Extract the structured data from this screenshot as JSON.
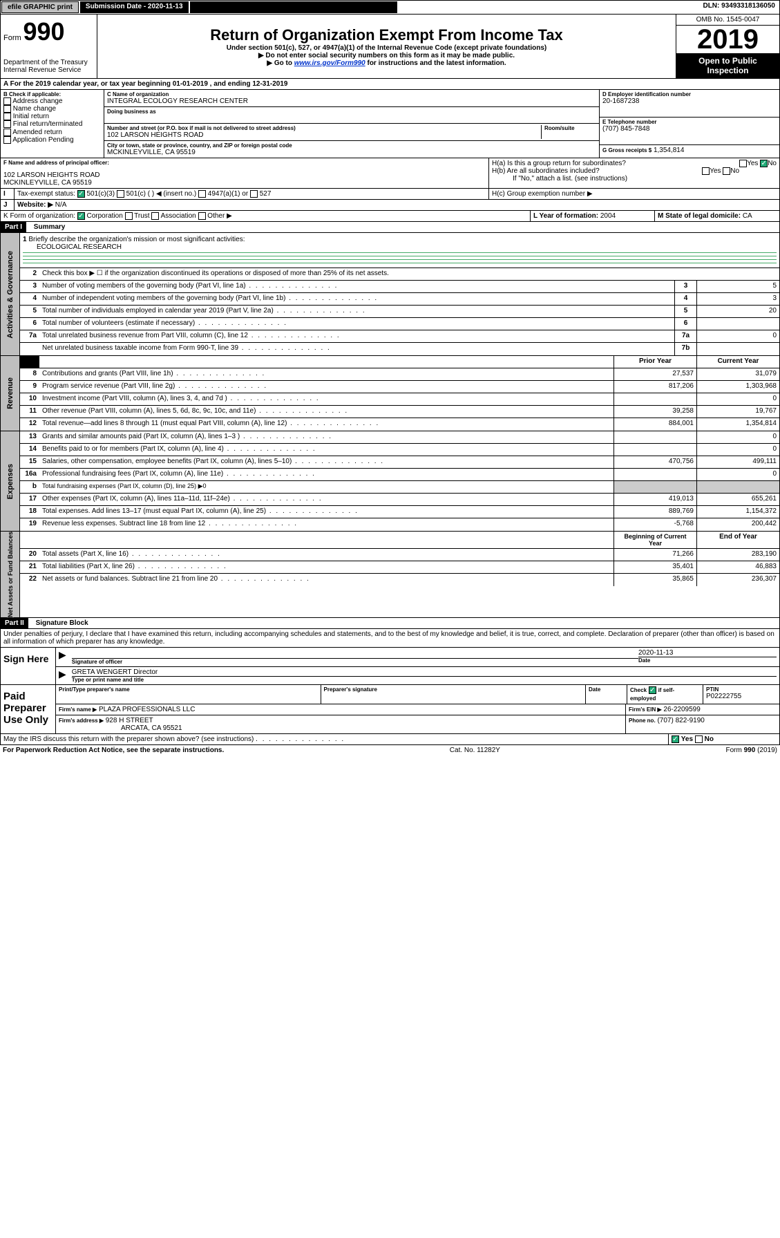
{
  "topbar": {
    "efile": "efile GRAPHIC print",
    "subm_label": "Submission Date - 2020-11-13",
    "dln": "DLN: 93493318136050"
  },
  "header": {
    "form_label": "Form",
    "form_num": "990",
    "dept1": "Department of the Treasury",
    "dept2": "Internal Revenue Service",
    "title": "Return of Organization Exempt From Income Tax",
    "subtitle": "Under section 501(c), 527, or 4947(a)(1) of the Internal Revenue Code (except private foundations)",
    "warn": "▶ Do not enter social security numbers on this form as it may be made public.",
    "link_pre": "▶ Go to ",
    "link": "www.irs.gov/Form990",
    "link_post": " for instructions and the latest information.",
    "omb": "OMB No. 1545-0047",
    "year": "2019",
    "inspect1": "Open to Public",
    "inspect2": "Inspection"
  },
  "line_a": "For the 2019 calendar year, or tax year beginning 01-01-2019    , and ending 12-31-2019",
  "box_b": {
    "title": "B Check if applicable:",
    "items": [
      "Address change",
      "Name change",
      "Initial return",
      "Final return/terminated",
      "Amended return",
      "Application Pending"
    ]
  },
  "box_c": {
    "label_name": "C Name of organization",
    "name": "INTEGRAL ECOLOGY RESEARCH CENTER",
    "dba_label": "Doing business as",
    "addr_label": "Number and street (or P.O. box if mail is not delivered to street address)",
    "room_label": "Room/suite",
    "addr": "102 LARSON HEIGHTS ROAD",
    "city_label": "City or town, state or province, country, and ZIP or foreign postal code",
    "city": "MCKINLEYVILLE, CA  95519"
  },
  "box_d": {
    "label": "D Employer identification number",
    "val": "20-1687238"
  },
  "box_e": {
    "label": "E Telephone number",
    "val": "(707) 845-7848"
  },
  "box_g": {
    "label": "G Gross receipts $",
    "val": "1,354,814"
  },
  "box_f": {
    "label": "F Name and address of principal officer:",
    "addr1": "102 LARSON HEIGHTS ROAD",
    "addr2": "MCKINLEYVILLE, CA  95519"
  },
  "box_h": {
    "a": "H(a)  Is this a group return for subordinates?",
    "b": "H(b)  Are all subordinates included?",
    "b_note": "If \"No,\" attach a list. (see instructions)",
    "c": "H(c)  Group exemption number ▶",
    "yes": "Yes",
    "no": "No"
  },
  "box_i": {
    "label": "Tax-exempt status:",
    "opts": [
      "501(c)(3)",
      "501(c) (  ) ◀ (insert no.)",
      "4947(a)(1) or",
      "527"
    ]
  },
  "box_j": {
    "label": "Website: ▶",
    "val": "N/A"
  },
  "box_k": {
    "label": "K Form of organization:",
    "opts": [
      "Corporation",
      "Trust",
      "Association",
      "Other ▶"
    ]
  },
  "box_l": {
    "label": "L Year of formation:",
    "val": "2004"
  },
  "box_m": {
    "label": "M State of legal domicile:",
    "val": "CA"
  },
  "part1": {
    "title": "Part I",
    "subtitle": "Summary",
    "side1": "Activities & Governance",
    "side2": "Revenue",
    "side3": "Expenses",
    "side4": "Net Assets or Fund Balances",
    "l1_label": "Briefly describe the organization's mission or most significant activities:",
    "l1_val": "ECOLOGICAL RESEARCH",
    "l2": "Check this box ▶ ☐  if the organization discontinued its operations or disposed of more than 25% of its net assets.",
    "lines_gov": [
      {
        "n": "3",
        "t": "Number of voting members of the governing body (Part VI, line 1a)",
        "box": "3",
        "v": "5"
      },
      {
        "n": "4",
        "t": "Number of independent voting members of the governing body (Part VI, line 1b)",
        "box": "4",
        "v": "3"
      },
      {
        "n": "5",
        "t": "Total number of individuals employed in calendar year 2019 (Part V, line 2a)",
        "box": "5",
        "v": "20"
      },
      {
        "n": "6",
        "t": "Total number of volunteers (estimate if necessary)",
        "box": "6",
        "v": ""
      },
      {
        "n": "7a",
        "t": "Total unrelated business revenue from Part VIII, column (C), line 12",
        "box": "7a",
        "v": "0"
      },
      {
        "n": " ",
        "t": "Net unrelated business taxable income from Form 990-T, line 39",
        "box": "7b",
        "v": ""
      }
    ],
    "hdr_prior": "Prior Year",
    "hdr_curr": "Current Year",
    "lines_rev": [
      {
        "n": "8",
        "t": "Contributions and grants (Part VIII, line 1h)",
        "p": "27,537",
        "c": "31,079"
      },
      {
        "n": "9",
        "t": "Program service revenue (Part VIII, line 2g)",
        "p": "817,206",
        "c": "1,303,968"
      },
      {
        "n": "10",
        "t": "Investment income (Part VIII, column (A), lines 3, 4, and 7d )",
        "p": "",
        "c": "0"
      },
      {
        "n": "11",
        "t": "Other revenue (Part VIII, column (A), lines 5, 6d, 8c, 9c, 10c, and 11e)",
        "p": "39,258",
        "c": "19,767"
      },
      {
        "n": "12",
        "t": "Total revenue—add lines 8 through 11 (must equal Part VIII, column (A), line 12)",
        "p": "884,001",
        "c": "1,354,814"
      }
    ],
    "lines_exp": [
      {
        "n": "13",
        "t": "Grants and similar amounts paid (Part IX, column (A), lines 1–3 )",
        "p": "",
        "c": "0"
      },
      {
        "n": "14",
        "t": "Benefits paid to or for members (Part IX, column (A), line 4)",
        "p": "",
        "c": "0"
      },
      {
        "n": "15",
        "t": "Salaries, other compensation, employee benefits (Part IX, column (A), lines 5–10)",
        "p": "470,756",
        "c": "499,111"
      },
      {
        "n": "16a",
        "t": "Professional fundraising fees (Part IX, column (A), line 11e)",
        "p": "",
        "c": "0"
      },
      {
        "n": "b",
        "t": "Total fundraising expenses (Part IX, column (D), line 25) ▶0",
        "p": null,
        "c": null
      },
      {
        "n": "17",
        "t": "Other expenses (Part IX, column (A), lines 11a–11d, 11f–24e)",
        "p": "419,013",
        "c": "655,261"
      },
      {
        "n": "18",
        "t": "Total expenses. Add lines 13–17 (must equal Part IX, column (A), line 25)",
        "p": "889,769",
        "c": "1,154,372"
      },
      {
        "n": "19",
        "t": "Revenue less expenses. Subtract line 18 from line 12",
        "p": "-5,768",
        "c": "200,442"
      }
    ],
    "hdr_beg": "Beginning of Current Year",
    "hdr_end": "End of Year",
    "lines_net": [
      {
        "n": "20",
        "t": "Total assets (Part X, line 16)",
        "p": "71,266",
        "c": "283,190"
      },
      {
        "n": "21",
        "t": "Total liabilities (Part X, line 26)",
        "p": "35,401",
        "c": "46,883"
      },
      {
        "n": "22",
        "t": "Net assets or fund balances. Subtract line 21 from line 20",
        "p": "35,865",
        "c": "236,307"
      }
    ]
  },
  "part2": {
    "title": "Part II",
    "subtitle": "Signature Block",
    "decl": "Under penalties of perjury, I declare that I have examined this return, including accompanying schedules and statements, and to the best of my knowledge and belief, it is true, correct, and complete. Declaration of preparer (other than officer) is based on all information of which preparer has any knowledge."
  },
  "sign": {
    "left": "Sign Here",
    "sig_label": "Signature of officer",
    "date_label": "Date",
    "date": "2020-11-13",
    "name": "GRETA WENGERT Director",
    "name_label": "Type or print name and title"
  },
  "paid": {
    "left1": "Paid",
    "left2": "Preparer",
    "left3": "Use Only",
    "h1": "Print/Type preparer's name",
    "h2": "Preparer's signature",
    "h3": "Date",
    "h4_a": "Check",
    "h4_b": "if self-employed",
    "h5": "PTIN",
    "ptin": "P02222755",
    "firm_label": "Firm's name    ▶",
    "firm": "PLAZA PROFESSIONALS LLC",
    "ein_label": "Firm's EIN ▶",
    "ein": "26-2209599",
    "addr_label": "Firm's address ▶",
    "addr1": "928 H STREET",
    "addr2": "ARCATA, CA  95521",
    "phone_label": "Phone no.",
    "phone": "(707) 822-9190"
  },
  "discuss": "May the IRS discuss this return with the preparer shown above? (see instructions)",
  "footer": {
    "pra": "For Paperwork Reduction Act Notice, see the separate instructions.",
    "cat": "Cat. No. 11282Y",
    "form": "Form 990 (2019)"
  }
}
